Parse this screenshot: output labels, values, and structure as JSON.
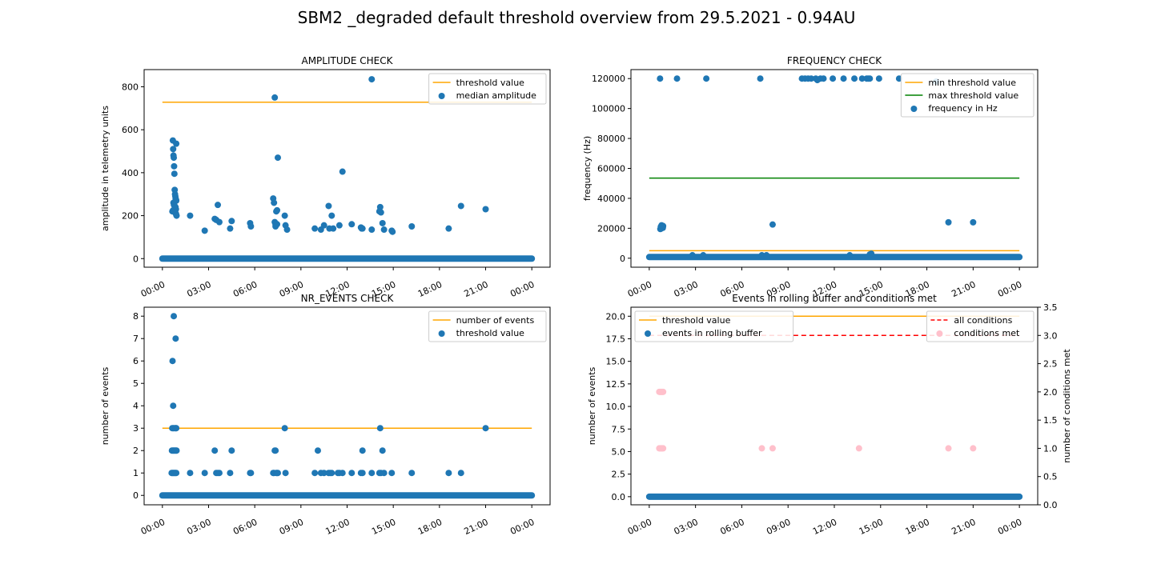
{
  "figure": {
    "title": "SBM2 _degraded default threshold overview from 29.5.2021 - 0.94AU"
  },
  "chart_data": [
    {
      "type": "scatter",
      "title": "AMPLITUDE CHECK",
      "xlabel": "",
      "ylabel": "amplitude in telemetry units",
      "xlim": [
        "00:00",
        "24:00"
      ],
      "ylim": [
        -40,
        880
      ],
      "xticks": [
        "00:00",
        "03:00",
        "06:00",
        "09:00",
        "12:00",
        "15:00",
        "18:00",
        "21:00",
        "00:00"
      ],
      "yticks": [
        0,
        200,
        400,
        600,
        800
      ],
      "legend": "upper right",
      "lines": [
        {
          "name": "threshold value",
          "color": "#ffa500",
          "style": "solid",
          "x": [
            0,
            24
          ],
          "y": [
            728,
            728
          ]
        }
      ],
      "series": [
        {
          "name": "median amplitude",
          "color": "#1f77b4",
          "baseline_value": 0,
          "x": [
            0.65,
            0.68,
            0.7,
            0.72,
            0.74,
            0.76,
            0.78,
            0.8,
            0.82,
            0.84,
            0.86,
            0.88,
            0.9,
            0.72,
            0.75,
            0.8,
            0.85,
            0.88,
            0.7,
            0.78,
            0.83,
            0.87,
            0.9,
            0.92,
            1.8,
            2.75,
            3.4,
            3.5,
            3.6,
            3.7,
            4.4,
            4.5,
            5.7,
            5.75,
            7.2,
            7.25,
            7.3,
            7.35,
            7.4,
            7.45,
            7.3,
            7.35,
            7.5,
            7.95,
            8.0,
            8.1,
            9.9,
            10.3,
            10.5,
            10.8,
            10.85,
            11.0,
            11.1,
            11.5,
            11.7,
            12.3,
            12.9,
            12.95,
            13.0,
            13.6,
            14.1,
            14.15,
            14.2,
            14.3,
            14.4,
            14.9,
            14.95,
            16.2,
            18.6,
            19.4,
            21.0,
            0.9,
            7.45,
            13.6
          ],
          "y": [
            220,
            550,
            510,
            480,
            470,
            430,
            395,
            320,
            300,
            290,
            280,
            275,
            270,
            260,
            250,
            245,
            240,
            230,
            225,
            220,
            215,
            210,
            205,
            200,
            200,
            130,
            185,
            180,
            250,
            170,
            140,
            175,
            165,
            150,
            280,
            260,
            170,
            150,
            220,
            225,
            750,
            160,
            470,
            200,
            155,
            135,
            140,
            135,
            155,
            245,
            140,
            200,
            140,
            155,
            405,
            160,
            145,
            140,
            140,
            135,
            220,
            240,
            215,
            165,
            135,
            130,
            125,
            150,
            140,
            245,
            230,
            535,
            160,
            835
          ]
        }
      ]
    },
    {
      "type": "scatter",
      "title": "FREQUENCY CHECK",
      "xlabel": "",
      "ylabel": "frequency (Hz)",
      "xlim": [
        "00:00",
        "24:00"
      ],
      "ylim": [
        -6000,
        126000
      ],
      "xticks": [
        "00:00",
        "03:00",
        "06:00",
        "09:00",
        "12:00",
        "15:00",
        "18:00",
        "21:00",
        "00:00"
      ],
      "yticks": [
        0,
        20000,
        40000,
        60000,
        80000,
        100000,
        120000
      ],
      "legend": "upper right",
      "lines": [
        {
          "name": "min threshold value",
          "color": "#ffa500",
          "style": "solid",
          "x": [
            0,
            24
          ],
          "y": [
            5000,
            5000
          ]
        },
        {
          "name": "max threshold value",
          "color": "#008000",
          "style": "solid",
          "x": [
            0,
            24
          ],
          "y": [
            53500,
            53500
          ]
        }
      ],
      "series": [
        {
          "name": "frequency in Hz",
          "color": "#1f77b4",
          "baseline_value": 800,
          "x": [
            0.7,
            0.75,
            0.8,
            0.85,
            0.9,
            0.72,
            0.78,
            0.82,
            0.88,
            0.76,
            0.8,
            1.8,
            3.7,
            7.2,
            9.9,
            10.1,
            10.3,
            10.5,
            10.8,
            10.9,
            11.1,
            11.3,
            11.9,
            12.6,
            13.3,
            13.8,
            14.1,
            14.2,
            14.3,
            14.9,
            16.2,
            18.6,
            19.4,
            21.0,
            2.8,
            3.5,
            7.3,
            7.6,
            8.0,
            13.0,
            14.3,
            14.4
          ],
          "y": [
            120000,
            21000,
            20000,
            20500,
            21500,
            19500,
            20800,
            21200,
            20300,
            20000,
            22000,
            120000,
            120000,
            120000,
            120000,
            120000,
            120000,
            120000,
            120000,
            119000,
            120000,
            120000,
            120000,
            120000,
            120000,
            120000,
            120000,
            120000,
            120000,
            120000,
            120000,
            118000,
            24000,
            24000,
            2000,
            2000,
            2000,
            2000,
            22500,
            2000,
            2500,
            3000
          ]
        }
      ]
    },
    {
      "type": "scatter",
      "title": "NR_EVENTS CHECK",
      "xlabel": "",
      "ylabel": "number of events",
      "xlim": [
        "00:00",
        "24:00"
      ],
      "ylim": [
        -0.42,
        8.4
      ],
      "xticks": [
        "00:00",
        "03:00",
        "06:00",
        "09:00",
        "12:00",
        "15:00",
        "18:00",
        "21:00",
        "00:00"
      ],
      "yticks": [
        0,
        1,
        2,
        3,
        4,
        5,
        6,
        7,
        8
      ],
      "legend": "upper right",
      "lines": [
        {
          "name": "number of events",
          "color": "#ffa500",
          "style": "solid",
          "x": [
            0,
            24
          ],
          "y": [
            3,
            3
          ]
        }
      ],
      "series": [
        {
          "name": "threshold value",
          "color": "#1f77b4",
          "baseline_value": 0,
          "x": [
            0.6,
            0.65,
            0.7,
            0.75,
            0.8,
            0.85,
            0.9,
            0.62,
            0.68,
            0.72,
            0.78,
            0.82,
            0.88,
            0.92,
            0.64,
            0.7,
            0.76,
            0.84,
            0.9,
            0.66,
            0.74,
            0.86,
            0.7,
            0.88,
            1.8,
            2.75,
            3.4,
            3.5,
            3.6,
            3.7,
            4.4,
            4.5,
            5.7,
            5.75,
            7.2,
            7.25,
            7.3,
            7.35,
            7.4,
            7.45,
            7.5,
            7.95,
            8.0,
            9.9,
            10.1,
            10.3,
            10.5,
            10.8,
            10.9,
            11.0,
            11.4,
            11.5,
            11.7,
            12.3,
            12.9,
            13.0,
            13.6,
            14.1,
            14.2,
            14.3,
            14.4,
            14.9,
            16.2,
            18.6,
            19.4,
            21.0,
            14.15,
            13.0
          ],
          "y": [
            1,
            1,
            1,
            1,
            1,
            1,
            1,
            2,
            2,
            2,
            2,
            2,
            2,
            2,
            3,
            3,
            3,
            3,
            3,
            6,
            8,
            7,
            4,
            3,
            1,
            1,
            2,
            1,
            1,
            1,
            1,
            2,
            1,
            1,
            1,
            1,
            2,
            2,
            1,
            1,
            1,
            3,
            1,
            1,
            2,
            1,
            1,
            1,
            1,
            1,
            1,
            1,
            1,
            1,
            1,
            2,
            1,
            1,
            1,
            2,
            1,
            1,
            1,
            1,
            1,
            3,
            3,
            1
          ]
        }
      ]
    },
    {
      "type": "scatter",
      "title": "Events in rolling buffer and conditions met",
      "xlabel": "",
      "ylabel": "number of events",
      "y2label": "number of conditions met",
      "xlim": [
        "00:00",
        "24:00"
      ],
      "ylim": [
        -0.9,
        21.0
      ],
      "y2lim": [
        0,
        3.5
      ],
      "xticks": [
        "00:00",
        "03:00",
        "06:00",
        "09:00",
        "12:00",
        "15:00",
        "18:00",
        "21:00",
        "00:00"
      ],
      "yticks": [
        0.0,
        2.5,
        5.0,
        7.5,
        10.0,
        12.5,
        15.0,
        17.5,
        20.0
      ],
      "y2ticks": [
        0.0,
        0.5,
        1.0,
        1.5,
        2.0,
        2.5,
        3.0,
        3.5
      ],
      "legend": "upper left (left axis), upper right (right axis)",
      "lines": [
        {
          "name": "threshold value",
          "color": "#ffa500",
          "style": "solid",
          "axis": "left",
          "x": [
            0,
            24
          ],
          "y": [
            20,
            20
          ]
        },
        {
          "name": "all conditions",
          "color": "#ff0000",
          "style": "dashed",
          "axis": "right",
          "x": [
            0,
            24
          ],
          "y": [
            3,
            3
          ]
        }
      ],
      "series": [
        {
          "name": "events in rolling buffer",
          "color": "#1f77b4",
          "axis": "left",
          "baseline_value": 0,
          "x": [],
          "y": []
        },
        {
          "name": "conditions met",
          "color": "#ffc0cb",
          "axis": "right",
          "x": [
            0.65,
            0.7,
            0.75,
            0.8,
            0.85,
            0.9,
            0.65,
            0.7,
            0.75,
            0.8,
            0.85,
            0.9,
            7.3,
            8.0,
            13.6,
            19.4,
            21.0
          ],
          "y": [
            2,
            2,
            2,
            2,
            2,
            2,
            1,
            1,
            1,
            1,
            1,
            1,
            1,
            1,
            1,
            1,
            1
          ]
        }
      ]
    }
  ]
}
